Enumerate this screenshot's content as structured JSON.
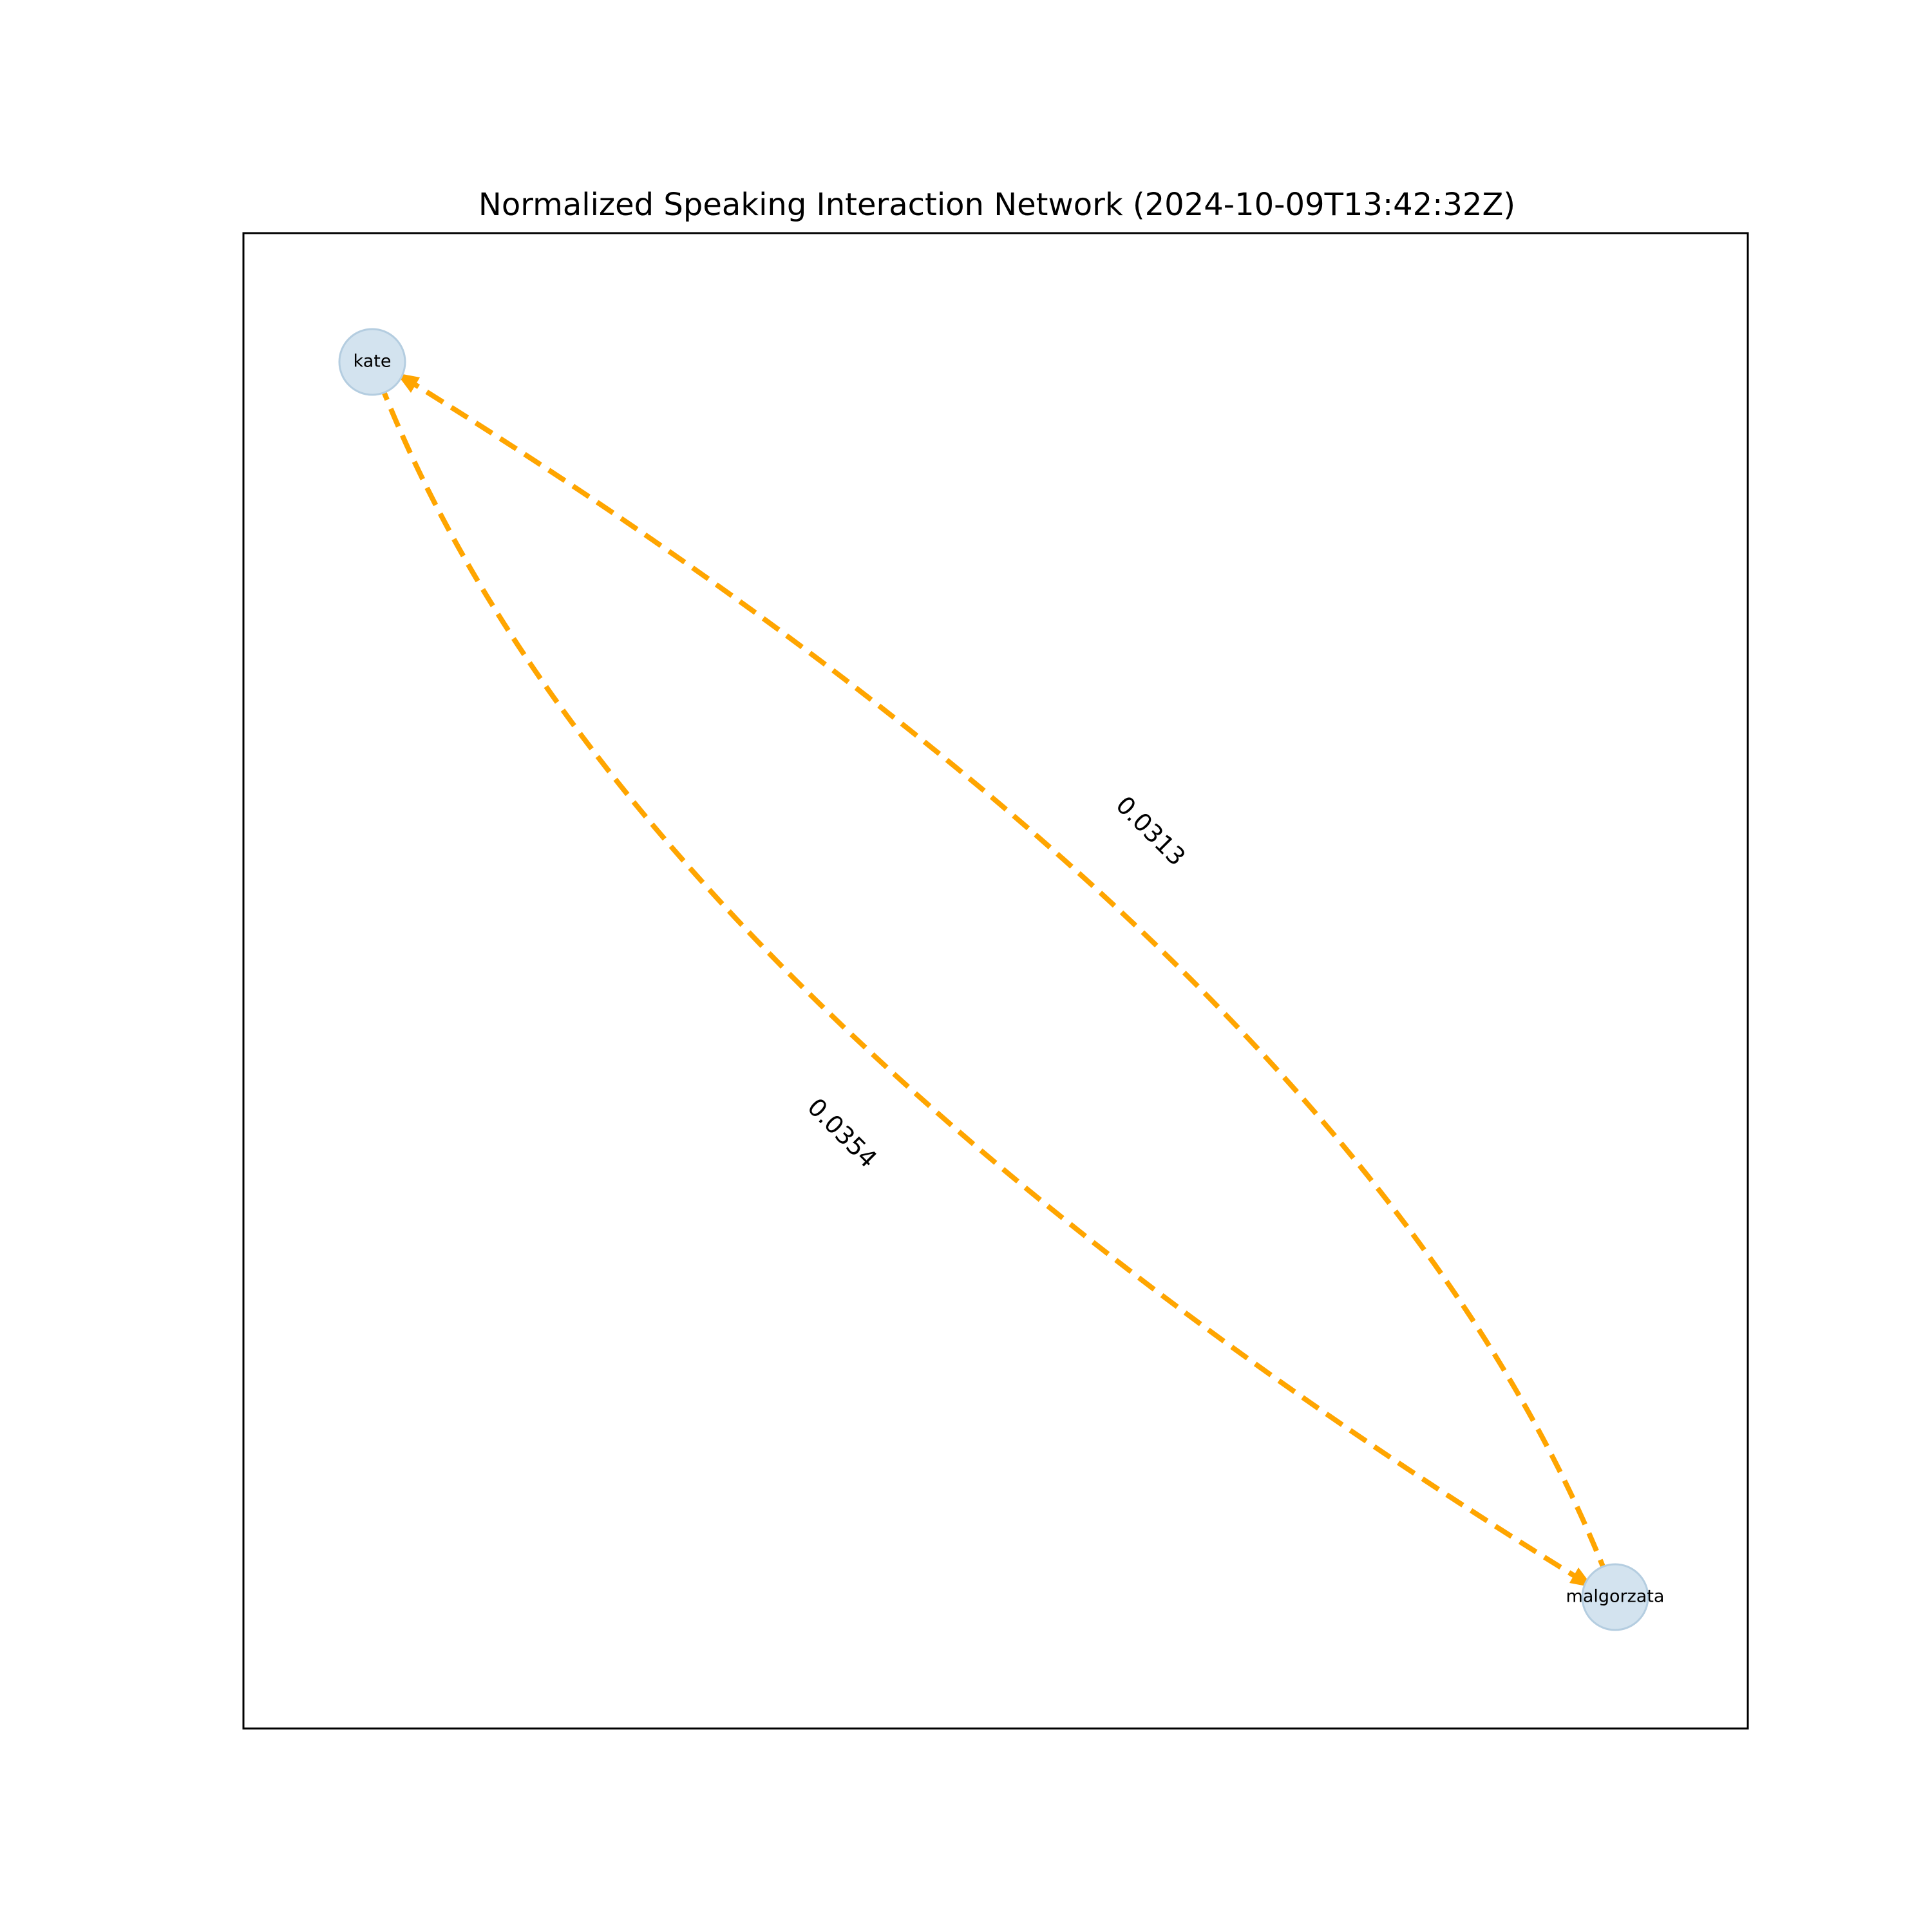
{
  "title": "Normalized Speaking Interaction Network (2024-10-09T13:42:32Z)",
  "colors": {
    "edge": "#ffa500",
    "node_fill": "#d3e3ef",
    "node_stroke": "#b4cde0",
    "frame": "#000000"
  },
  "nodes": [
    {
      "id": "kate",
      "label": "kate"
    },
    {
      "id": "malgorzata",
      "label": "malgorzata"
    }
  ],
  "edges": [
    {
      "from": "malgorzata",
      "to": "kate",
      "weight_label": "0.0313",
      "style": "dashed"
    },
    {
      "from": "kate",
      "to": "malgorzata",
      "weight_label": "0.0354",
      "style": "dashed"
    }
  ]
}
